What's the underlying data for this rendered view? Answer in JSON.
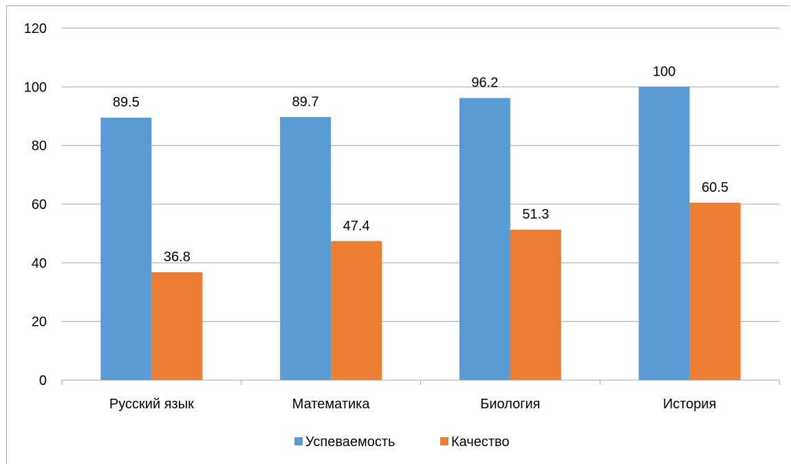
{
  "chart_data": {
    "type": "bar",
    "title": "",
    "xlabel": "",
    "ylabel": "",
    "categories": [
      "Русский язык",
      "Математика",
      "Биология",
      "История"
    ],
    "series": [
      {
        "name": "Успеваемость",
        "color": "#5b9bd5",
        "values": [
          89.5,
          89.7,
          96.2,
          100
        ],
        "labels": [
          "89.5",
          "89.7",
          "96.2",
          "100"
        ]
      },
      {
        "name": "Качество",
        "color": "#ed7d31",
        "values": [
          36.8,
          47.4,
          51.3,
          60.5
        ],
        "labels": [
          "36.8",
          "47.4",
          "51.3",
          "60.5"
        ]
      }
    ],
    "ylim": [
      0,
      120
    ],
    "yticks": [
      0,
      20,
      40,
      60,
      80,
      100,
      120
    ],
    "ytick_labels": [
      "0",
      "20",
      "40",
      "60",
      "80",
      "100",
      "120"
    ],
    "grid": true,
    "legend_position": "bottom"
  }
}
